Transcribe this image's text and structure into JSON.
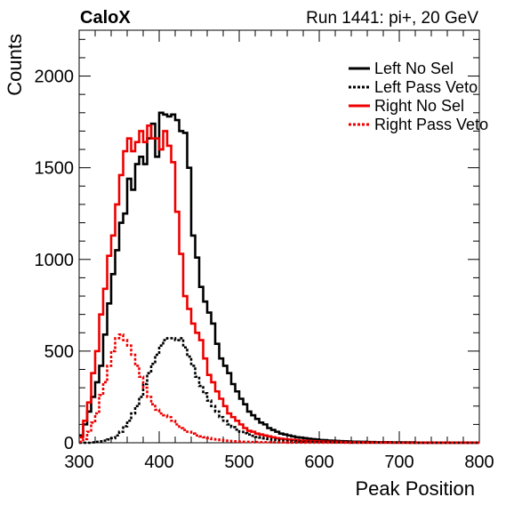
{
  "header": {
    "experiment": "CaloX",
    "run_label": "Run 1441: pi+, 20 GeV"
  },
  "chart_data": {
    "type": "line",
    "title": "",
    "xlabel": "Peak Position",
    "ylabel": "Counts",
    "xlim": [
      300,
      800
    ],
    "ylim": [
      0,
      2250
    ],
    "x_ticks": [
      300,
      400,
      500,
      600,
      700,
      800
    ],
    "y_ticks": [
      0,
      500,
      1000,
      1500,
      2000
    ],
    "bin_width": 5,
    "x": [
      300,
      305,
      310,
      315,
      320,
      325,
      330,
      335,
      340,
      345,
      350,
      355,
      360,
      365,
      370,
      375,
      380,
      385,
      390,
      395,
      400,
      405,
      410,
      415,
      420,
      425,
      430,
      435,
      440,
      445,
      450,
      455,
      460,
      465,
      470,
      475,
      480,
      485,
      490,
      495,
      500,
      505,
      510,
      515,
      520,
      525,
      530,
      535,
      540,
      545,
      550,
      555,
      560,
      565,
      570,
      575,
      580,
      585,
      590,
      595,
      600,
      605,
      610,
      615,
      620,
      625,
      630,
      635,
      640,
      645,
      650,
      655,
      660,
      665,
      670,
      675,
      680,
      685,
      690,
      695,
      700,
      705,
      710,
      715,
      720,
      725,
      730,
      735,
      740,
      745,
      750,
      755,
      760,
      765,
      770,
      775,
      780,
      785,
      790,
      795
    ],
    "legend_position": "top-right",
    "series": [
      {
        "name": "Left No Sel",
        "color": "#000000",
        "dashed": false,
        "values": [
          40,
          100,
          170,
          250,
          330,
          420,
          590,
          760,
          920,
          1050,
          1200,
          1250,
          1440,
          1380,
          1520,
          1560,
          1520,
          1660,
          1740,
          1560,
          1800,
          1790,
          1780,
          1790,
          1760,
          1700,
          1690,
          1500,
          1130,
          1010,
          850,
          770,
          710,
          650,
          540,
          460,
          420,
          380,
          320,
          280,
          240,
          210,
          170,
          150,
          130,
          110,
          100,
          80,
          70,
          60,
          50,
          45,
          40,
          35,
          30,
          28,
          25,
          22,
          20,
          18,
          15,
          14,
          12,
          11,
          10,
          9,
          8,
          7,
          6,
          6,
          5,
          5,
          4,
          4,
          3,
          3,
          3,
          3,
          2,
          2,
          2,
          2,
          2,
          2,
          1,
          1,
          1,
          1,
          1,
          1,
          1,
          1,
          1,
          1,
          1,
          1,
          1,
          1,
          1,
          1
        ]
      },
      {
        "name": "Left Pass Veto",
        "color": "#000000",
        "dashed": true,
        "values": [
          0,
          0,
          0,
          2,
          5,
          8,
          12,
          18,
          25,
          40,
          60,
          90,
          120,
          160,
          200,
          250,
          320,
          380,
          430,
          480,
          530,
          560,
          570,
          570,
          560,
          570,
          520,
          470,
          420,
          360,
          310,
          270,
          230,
          200,
          170,
          140,
          120,
          100,
          85,
          72,
          60,
          52,
          45,
          38,
          32,
          28,
          24,
          20,
          17,
          14,
          12,
          10,
          9,
          8,
          7,
          6,
          5,
          5,
          4,
          4,
          3,
          3,
          3,
          2,
          2,
          2,
          2,
          2,
          1,
          1,
          1,
          1,
          1,
          1,
          1,
          1,
          1,
          1,
          1,
          1,
          1,
          1,
          0,
          0,
          0,
          0,
          0,
          0,
          0,
          0,
          0,
          0,
          0,
          0,
          0,
          0,
          0,
          0,
          0,
          0
        ]
      },
      {
        "name": "Right No Sel",
        "color": "#ee0000",
        "dashed": false,
        "values": [
          30,
          120,
          220,
          380,
          500,
          700,
          840,
          1020,
          1130,
          1300,
          1460,
          1590,
          1660,
          1590,
          1640,
          1700,
          1640,
          1730,
          1660,
          1660,
          1600,
          1700,
          1620,
          1530,
          1260,
          1030,
          800,
          730,
          650,
          600,
          560,
          460,
          370,
          330,
          280,
          240,
          200,
          160,
          140,
          120,
          100,
          80,
          65,
          60,
          50,
          45,
          40,
          35,
          30,
          25,
          22,
          20,
          18,
          16,
          14,
          12,
          11,
          10,
          9,
          8,
          7,
          6,
          6,
          5,
          5,
          4,
          4,
          3,
          3,
          3,
          3,
          2,
          2,
          2,
          2,
          2,
          2,
          2,
          1,
          1,
          1,
          1,
          1,
          1,
          1,
          1,
          1,
          1,
          1,
          1,
          1,
          1,
          1,
          1,
          1,
          1,
          1,
          1,
          1,
          1
        ]
      },
      {
        "name": "Right Pass Veto",
        "color": "#ee0000",
        "dashed": true,
        "values": [
          5,
          20,
          60,
          110,
          160,
          260,
          330,
          420,
          500,
          570,
          590,
          560,
          530,
          480,
          420,
          360,
          300,
          250,
          210,
          180,
          160,
          150,
          140,
          120,
          100,
          80,
          70,
          60,
          50,
          40,
          35,
          30,
          25,
          20,
          18,
          15,
          12,
          10,
          8,
          7,
          6,
          5,
          5,
          4,
          4,
          3,
          3,
          3,
          2,
          2,
          2,
          2,
          1,
          1,
          1,
          1,
          1,
          1,
          1,
          1,
          1,
          1,
          1,
          1,
          1,
          1,
          0,
          0,
          0,
          0,
          0,
          0,
          0,
          0,
          0,
          0,
          0,
          0,
          0,
          0,
          0,
          0,
          0,
          0,
          0,
          0,
          0,
          0,
          0,
          0,
          0,
          0,
          0,
          0,
          0,
          0,
          0,
          0,
          0,
          0
        ]
      }
    ]
  }
}
